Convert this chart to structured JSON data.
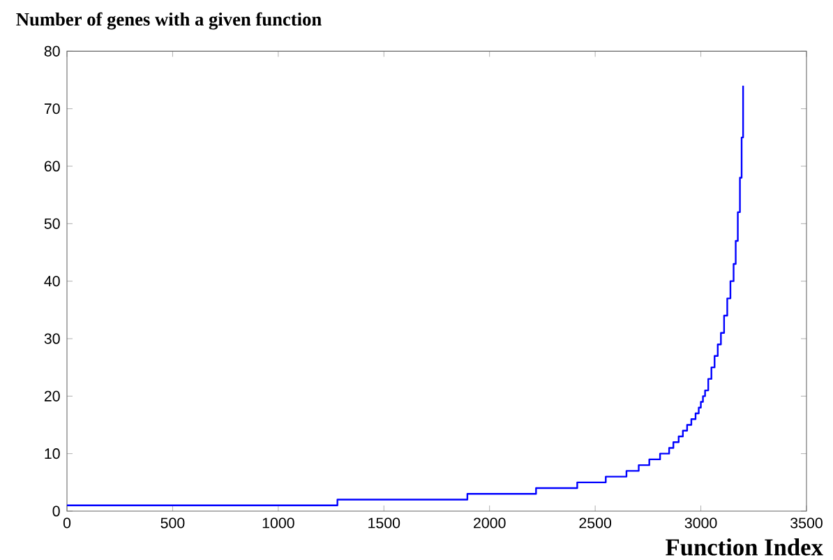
{
  "chart_data": {
    "type": "step",
    "title": "Number of genes with a given function",
    "xlabel": "Function Index",
    "x": [
      0,
      1280,
      1895,
      2220,
      2415,
      2550,
      2648,
      2706,
      2756,
      2807,
      2850,
      2870,
      2895,
      2915,
      2935,
      2955,
      2975,
      2990,
      3000,
      3010,
      3020,
      3035,
      3050,
      3065,
      3080,
      3095,
      3110,
      3125,
      3140,
      3155,
      3165,
      3175,
      3185,
      3193,
      3200
    ],
    "values": [
      1,
      2,
      3,
      4,
      5,
      6,
      7,
      8,
      9,
      10,
      11,
      12,
      13,
      14,
      15,
      16,
      17,
      18,
      19,
      20,
      21,
      23,
      25,
      27,
      29,
      31,
      34,
      37,
      40,
      43,
      47,
      52,
      58,
      65,
      74
    ],
    "color": "#0000ff",
    "xlim": [
      0,
      3500
    ],
    "xticks": [
      0,
      500,
      1000,
      1500,
      2000,
      2500,
      3000,
      3500
    ],
    "ylim": [
      0,
      80
    ],
    "yticks": [
      0,
      10,
      20,
      30,
      40,
      50,
      60,
      70,
      80
    ]
  }
}
